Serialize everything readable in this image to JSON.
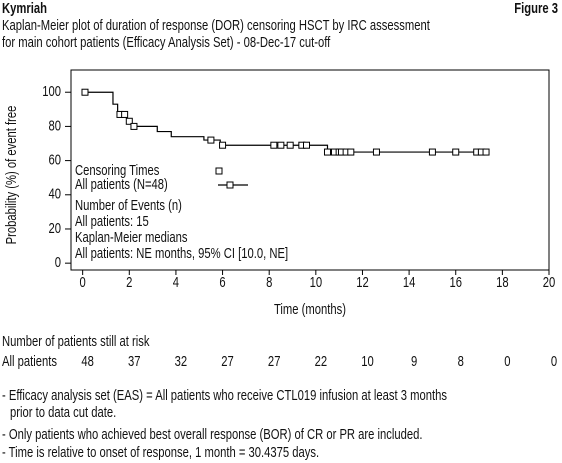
{
  "header": {
    "product": "Kymriah",
    "figure": "Figure 3"
  },
  "chart_data": {
    "type": "step",
    "title_lines": [
      "Kaplan-Meier plot of duration of response (DOR) censoring HSCT by IRC assessment",
      "for main cohort patients (Efficacy Analysis Set) - 08-Dec-17 cut-off"
    ],
    "x_label": "Time (months)",
    "y_label": "Probability (%) of event free",
    "xlim": [
      -0.5,
      20
    ],
    "ylim": [
      -4,
      113
    ],
    "xticks": [
      0,
      2,
      4,
      6,
      8,
      10,
      12,
      14,
      16,
      18,
      20
    ],
    "yticks": [
      0,
      20,
      40,
      60,
      80,
      100
    ],
    "legend_title": "Censoring Times",
    "series": [
      {
        "name": "All patients (N=48)",
        "color": "#000000",
        "x": [
          0,
          1.3,
          1.5,
          1.9,
          2.1,
          3.2,
          3.8,
          5.2,
          5.9,
          10.5,
          17.4
        ],
        "values": [
          100,
          93,
          87,
          83,
          80,
          77,
          74,
          72,
          69,
          65,
          65
        ],
        "censor_x": [
          0.1,
          1.6,
          1.8,
          2.0,
          2.2,
          5.5,
          6.0,
          8.2,
          8.5,
          8.9,
          9.4,
          9.6,
          10.5,
          10.8,
          11.0,
          11.1,
          11.3,
          11.5,
          12.6,
          15.0,
          16.0,
          16.9,
          17.1,
          17.3
        ],
        "censor_values": [
          100,
          87,
          87,
          83,
          80,
          72,
          69,
          69,
          69,
          69,
          69,
          69,
          65,
          65,
          65,
          65,
          65,
          65,
          65,
          65,
          65,
          65,
          65,
          65
        ]
      }
    ],
    "annotations": [
      "Number of Events (n)",
      "All patients: 15",
      "Kaplan-Meier medians",
      "All patients: NE months, 95% CI [10.0, NE]"
    ],
    "risk_table": {
      "title": "Number of patients still at risk",
      "label": "All patients",
      "counts": [
        48,
        37,
        32,
        27,
        27,
        22,
        10,
        9,
        8,
        0,
        0
      ]
    }
  },
  "footnotes": [
    "- Efficacy analysis set (EAS) = All patients who receive CTL019 infusion at least 3 months",
    "prior to data cut date.",
    "- Only patients who achieved best overall response (BOR) of CR or PR are included.",
    "- Time is relative to onset of response, 1 month = 30.4375 days."
  ]
}
